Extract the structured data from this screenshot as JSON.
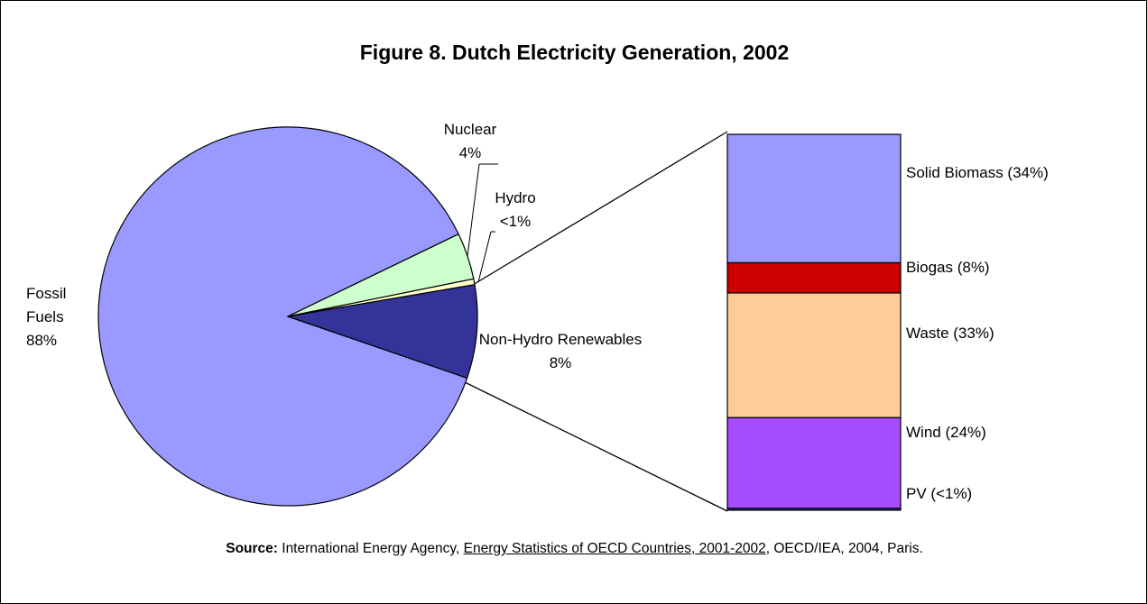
{
  "chart_data": [
    {
      "type": "pie",
      "title": "Figure 8. Dutch Electricity Generation, 2002",
      "categories": [
        "Fossil Fuels",
        "Nuclear",
        "Hydro",
        "Non-Hydro Renewables"
      ],
      "values": [
        88,
        4,
        0.5,
        8
      ],
      "value_labels": [
        "88%",
        "4%",
        "<1%",
        "8%"
      ],
      "colors": [
        "#9999ff",
        "#ccffcc",
        "#ffffcc",
        "#333399"
      ]
    },
    {
      "type": "stacked_bar",
      "labels": [
        "Solid Biomass (34%)",
        "Biogas (8%)",
        "Waste (33%)",
        "Wind (24%)",
        "PV (<1%)"
      ],
      "values": [
        34,
        8,
        33,
        24,
        0.5
      ],
      "colors": [
        "#9999ff",
        "#cc0000",
        "#ffcc99",
        "#a64dff",
        "#333399"
      ]
    }
  ],
  "source": {
    "label": "Source:",
    "text_before": " International Energy Agency, ",
    "title": "Energy Statistics of OECD Countries, 2001-2002",
    "text_after": ", OECD/IEA, 2004, Paris."
  }
}
